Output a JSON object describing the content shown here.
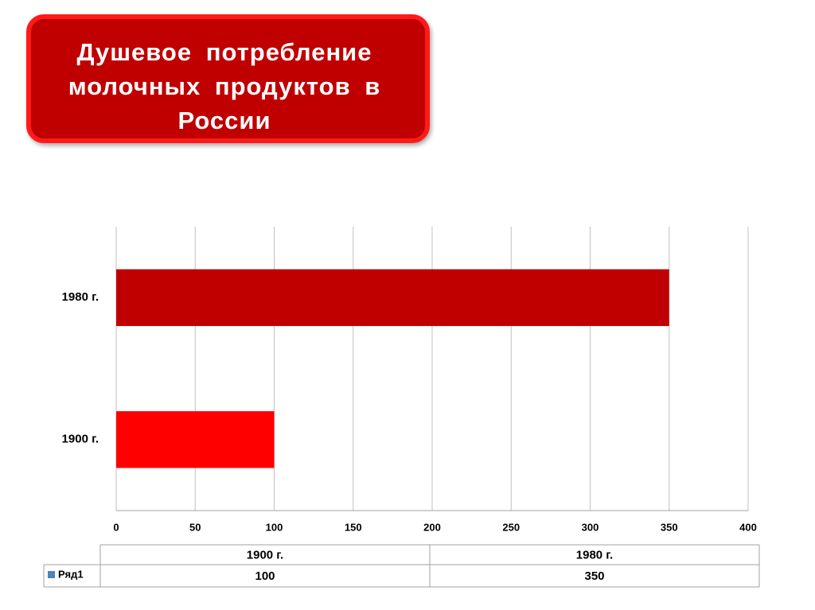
{
  "chart_data": {
    "type": "barh",
    "title": "Душевое потребление молочных продуктов в России",
    "categories": [
      "1900 г.",
      "1980 г."
    ],
    "series": [
      {
        "name": "Ряд1",
        "color": "#4f81bd",
        "values": [
          100,
          350
        ],
        "point_colors": [
          "#ff0000",
          "#c00000"
        ]
      }
    ],
    "xlim": [
      0,
      400
    ],
    "xticks": [
      0,
      50,
      100,
      150,
      200,
      250,
      300,
      350,
      400
    ],
    "grid": true
  }
}
